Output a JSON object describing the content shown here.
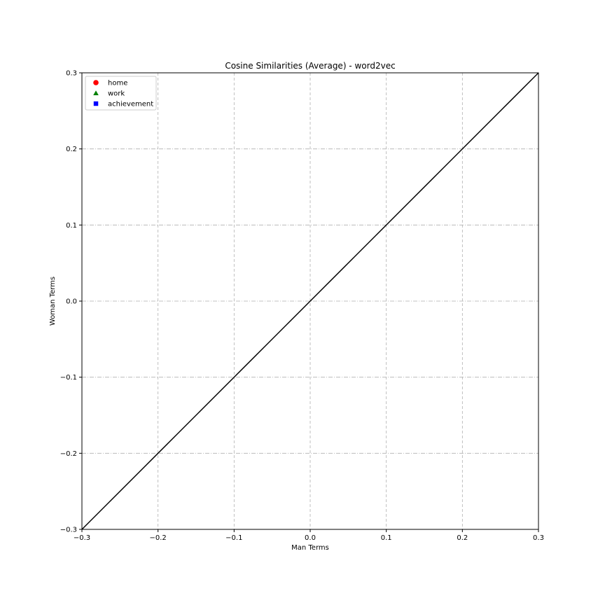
{
  "chart_data": {
    "type": "scatter",
    "title": "Cosine Similarities (Average) - word2vec",
    "xlabel": "Man Terms",
    "ylabel": "Woman Terms",
    "xlim": [
      -0.3,
      0.3
    ],
    "ylim": [
      -0.3,
      0.3
    ],
    "xticks": [
      -0.3,
      -0.2,
      -0.1,
      0.0,
      0.1,
      0.2,
      0.3
    ],
    "yticks": [
      -0.3,
      -0.2,
      -0.1,
      0.0,
      0.1,
      0.2,
      0.3
    ],
    "xtick_labels": [
      "−0.3",
      "−0.2",
      "−0.1",
      "0.0",
      "0.1",
      "0.2",
      "0.3"
    ],
    "ytick_labels": [
      "−0.3",
      "−0.2",
      "−0.1",
      "0.0",
      "0.1",
      "0.2",
      "0.3"
    ],
    "grid": true,
    "legend_position": "top-left",
    "series": [
      {
        "name": "home",
        "marker": "circle",
        "color": "#ff0000",
        "points": []
      },
      {
        "name": "work",
        "marker": "triangle",
        "color": "#008000",
        "points": []
      },
      {
        "name": "achievement",
        "marker": "square",
        "color": "#0000ff",
        "points": []
      }
    ],
    "reference_line": {
      "x": [
        -0.3,
        0.3
      ],
      "y": [
        -0.3,
        0.3
      ],
      "color": "#000000"
    }
  }
}
